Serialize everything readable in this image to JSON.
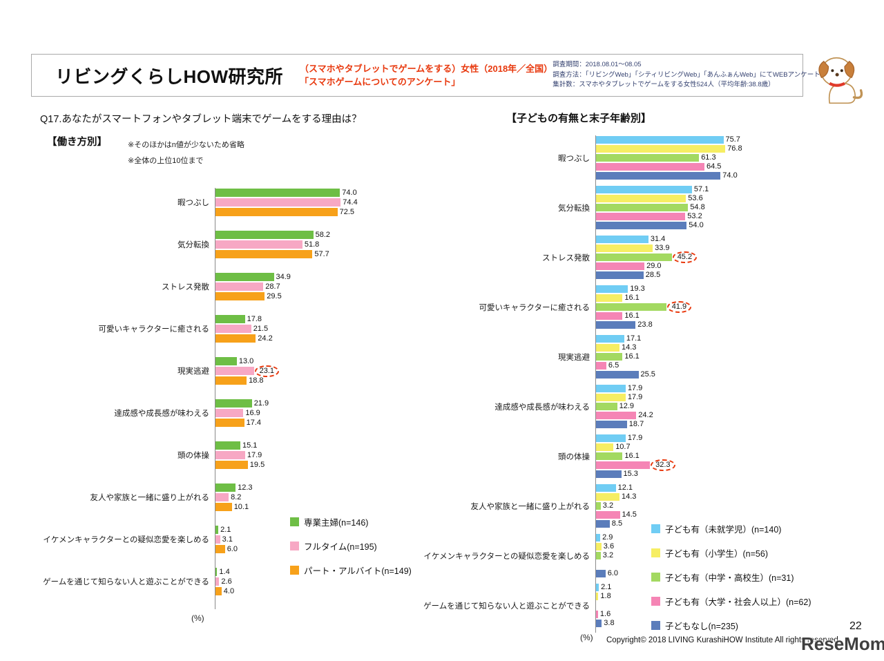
{
  "header": {
    "logo_text": "リビングくらしHOW研究所",
    "subject_lines": [
      "（スマホやタブレットでゲームをする）女性（2018年／全国）",
      "「スマホゲームについてのアンケート」"
    ],
    "survey_info": [
      "調査期間：2018.08.01～08.05",
      "調査方法：「リビングWeb」「シティリビングWeb」「あんふぁんWeb」にてWEBアンケート",
      "集計数：スマホやタブレットでゲームをする女性524人（平均年齢:38.8歳）"
    ]
  },
  "question_title": "Q17.あなたがスマートフォンやタブレット端末でゲームをする理由は？",
  "left_section": {
    "label": "【働き方別】",
    "note1": "※そのほかはn値が少ないため省略",
    "note2": "※全体の上位10位まで",
    "unit_label": "(%)"
  },
  "right_section": {
    "title": "【子どもの有無と末子年齢別】",
    "unit_label": "(%)"
  },
  "footer": {
    "copyright": "Copyright© 2018 LIVING KurashiHOW Institute All rights reserved.",
    "page_number": "22",
    "watermark": "ReseMom."
  },
  "colors": {
    "accent_red": "#e8380d",
    "header_border": "#a9a9a9"
  },
  "chart_data": [
    {
      "id": "by-work-style",
      "type": "bar",
      "orientation": "horizontal",
      "title": "【働き方別】",
      "unit": "%",
      "xlim": [
        0,
        80
      ],
      "value_labels": true,
      "legend_position": "bottom-right",
      "categories": [
        "暇つぶし",
        "気分転換",
        "ストレス発散",
        "可愛いキャラクターに癒される",
        "現実逃避",
        "達成感や成長感が味わえる",
        "頭の体操",
        "友人や家族と一緒に盛り上がれる",
        "イケメンキャラクターとの疑似恋愛を楽しめる",
        "ゲームを通じて知らない人と遊ぶことができる"
      ],
      "series": [
        {
          "name": "専業主婦(n=146)",
          "color": "#6ebe45",
          "values": [
            74.0,
            58.2,
            34.9,
            17.8,
            13.0,
            21.9,
            15.1,
            12.3,
            2.1,
            1.4
          ]
        },
        {
          "name": "フルタイム(n=195)",
          "color": "#f7a8c4",
          "values": [
            74.4,
            51.8,
            28.7,
            21.5,
            23.1,
            16.9,
            17.9,
            8.2,
            3.1,
            2.6
          ]
        },
        {
          "name": "パート・アルバイト(n=149)",
          "color": "#f7a11a",
          "values": [
            72.5,
            57.7,
            29.5,
            24.2,
            18.8,
            17.4,
            19.5,
            10.1,
            6.0,
            4.0
          ]
        }
      ],
      "circled": [
        {
          "category_index": 4,
          "series_index": 1,
          "value": 23.1
        }
      ]
    },
    {
      "id": "by-children",
      "type": "bar",
      "orientation": "horizontal",
      "title": "【子どもの有無と末子年齢別】",
      "unit": "%",
      "xlim": [
        0,
        80
      ],
      "value_labels": true,
      "legend_position": "bottom-right",
      "categories": [
        "暇つぶし",
        "気分転換",
        "ストレス発散",
        "可愛いキャラクターに癒される",
        "現実逃避",
        "達成感や成長感が味わえる",
        "頭の体操",
        "友人や家族と一緒に盛り上がれる",
        "イケメンキャラクターとの疑似恋愛を楽しめる",
        "ゲームを通じて知らない人と遊ぶことができる"
      ],
      "series": [
        {
          "name": "子ども有（未就学児）(n=140)",
          "color": "#70cdf4",
          "values": [
            75.7,
            57.1,
            31.4,
            19.3,
            17.1,
            17.9,
            17.9,
            12.1,
            2.9,
            2.1
          ]
        },
        {
          "name": "子ども有（小学生）(n=56)",
          "color": "#f6ee63",
          "values": [
            76.8,
            53.6,
            33.9,
            16.1,
            14.3,
            17.9,
            10.7,
            14.3,
            3.6,
            1.8
          ]
        },
        {
          "name": "子ども有（中学・高校生）(n=31)",
          "color": "#a3d961",
          "values": [
            61.3,
            54.8,
            45.2,
            41.9,
            16.1,
            12.9,
            16.1,
            3.2,
            3.2,
            null
          ]
        },
        {
          "name": "子ども有（大学・社会人以上）(n=62)",
          "color": "#f585b5",
          "values": [
            64.5,
            53.2,
            29.0,
            16.1,
            6.5,
            24.2,
            32.3,
            14.5,
            null,
            1.6
          ]
        },
        {
          "name": "子どもなし(n=235)",
          "color": "#5b7dbb",
          "values": [
            74.0,
            54.0,
            28.5,
            23.8,
            25.5,
            18.7,
            15.3,
            8.5,
            6.0,
            3.8
          ]
        }
      ],
      "circled": [
        {
          "category_index": 2,
          "series_index": 2,
          "value": 45.2
        },
        {
          "category_index": 3,
          "series_index": 2,
          "value": 41.9
        },
        {
          "category_index": 6,
          "series_index": 3,
          "value": 32.3
        }
      ]
    }
  ]
}
